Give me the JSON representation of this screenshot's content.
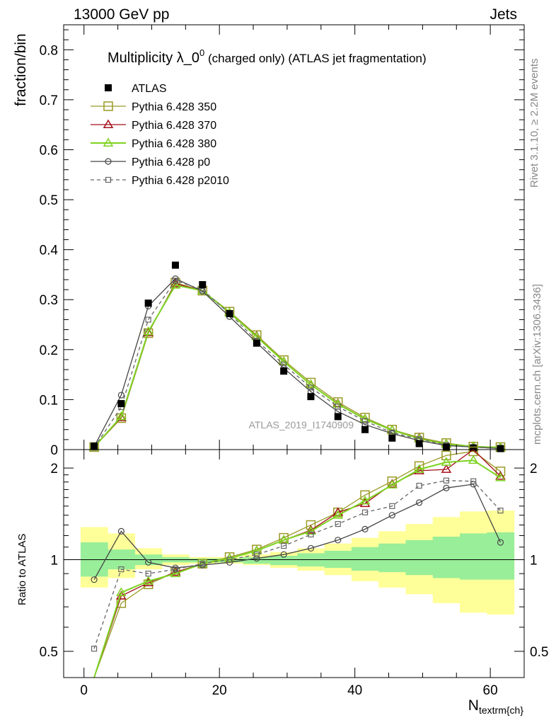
{
  "header": {
    "energy_label": "13000 GeV pp",
    "process_label": "Jets",
    "rivet_label": "Rivet 3.1.10, ≥ 2.2M events",
    "source_label": "mcplots.cern.ch [arXiv:1306.3436]",
    "analysis_label": "ATLAS_2019_I1740909"
  },
  "chart_data": [
    {
      "type": "line",
      "title_main": "Multiplicity λ_0",
      "title_sup": "0",
      "title_rest": " (charged only) (ATLAS jet fragmentation)",
      "ylabel": "fraction/bin",
      "xlim": [
        -3,
        65
      ],
      "ylim": [
        0,
        0.85
      ],
      "yticks": [
        0,
        0.1,
        0.2,
        0.3,
        0.4,
        0.5,
        0.6,
        0.7,
        0.8
      ],
      "ytick_labels": [
        "0",
        "0.1",
        "0.2",
        "0.3",
        "0.4",
        "0.5",
        "0.6",
        "0.7",
        "0.8"
      ],
      "legend_position": "top-left",
      "x": [
        1.5,
        5.5,
        9.5,
        13.5,
        17.5,
        21.5,
        25.5,
        29.5,
        33.5,
        37.5,
        41.5,
        45.5,
        49.5,
        53.5,
        57.5,
        61.5
      ],
      "data": {
        "name": "ATLAS",
        "values": [
          0.007,
          0.092,
          0.293,
          0.369,
          0.33,
          0.272,
          0.213,
          0.157,
          0.106,
          0.066,
          0.04,
          0.023,
          0.012,
          0.005,
          0.003,
          0.002
        ]
      },
      "series": [
        {
          "name": "Pythia 6.428 350",
          "color": "#9a9a26",
          "marker": "square",
          "dashed": false,
          "values": [
            0.005,
            0.063,
            0.233,
            0.334,
            0.318,
            0.276,
            0.229,
            0.179,
            0.134,
            0.095,
            0.064,
            0.04,
            0.024,
            0.013,
            0.006,
            0.005
          ]
        },
        {
          "name": "Pythia 6.428 370",
          "color": "#a50f1c",
          "marker": "triangle",
          "dashed": false,
          "values": [
            0.005,
            0.064,
            0.234,
            0.332,
            0.318,
            0.274,
            0.227,
            0.176,
            0.13,
            0.092,
            0.061,
            0.039,
            0.023,
            0.011,
            0.006,
            0.004
          ]
        },
        {
          "name": "Pythia 6.428 380",
          "color": "#7ed321",
          "marker": "triangle",
          "dashed": false,
          "values": [
            0.005,
            0.066,
            0.236,
            0.329,
            0.318,
            0.274,
            0.226,
            0.176,
            0.13,
            0.091,
            0.061,
            0.039,
            0.022,
            0.011,
            0.006,
            0.004
          ]
        },
        {
          "name": "Pythia 6.428 p0",
          "color": "#444444",
          "marker": "circle",
          "dashed": false,
          "values": [
            0.006,
            0.109,
            0.287,
            0.342,
            0.317,
            0.266,
            0.214,
            0.163,
            0.116,
            0.076,
            0.05,
            0.032,
            0.018,
            0.008,
            0.005,
            0.002
          ]
        },
        {
          "name": "Pythia 6.428 p2010",
          "color": "#666666",
          "marker": "square-small",
          "dashed": true,
          "values": [
            0.004,
            0.085,
            0.26,
            0.338,
            0.32,
            0.272,
            0.218,
            0.17,
            0.124,
            0.086,
            0.057,
            0.034,
            0.021,
            0.009,
            0.005,
            0.003
          ]
        }
      ]
    },
    {
      "type": "line",
      "ylabel": "Ratio to ATLAS",
      "xlabel_main": "N",
      "xlabel_sub": "textrm{ch}",
      "xlim": [
        -3,
        65
      ],
      "ylim": [
        0.41,
        2.3
      ],
      "yticks": [
        0.5,
        1,
        2
      ],
      "ytick_labels": [
        "0.5",
        "1",
        "2"
      ],
      "xticks": [
        0,
        20,
        40,
        60
      ],
      "xtick_labels": [
        "0",
        "20",
        "40",
        "60"
      ],
      "x": [
        1.5,
        5.5,
        9.5,
        13.5,
        17.5,
        21.5,
        25.5,
        29.5,
        33.5,
        37.5,
        41.5,
        45.5,
        49.5,
        53.5,
        57.5,
        61.5
      ],
      "bin_edges": [
        -0.5,
        3.5,
        7.5,
        11.5,
        15.5,
        19.5,
        23.5,
        27.5,
        31.5,
        35.5,
        39.5,
        43.5,
        47.5,
        51.5,
        55.5,
        59.5,
        63.5
      ],
      "band_total": {
        "low": [
          0.81,
          0.87,
          0.93,
          0.96,
          0.97,
          0.97,
          0.96,
          0.94,
          0.92,
          0.89,
          0.85,
          0.81,
          0.77,
          0.72,
          0.67,
          0.66
        ],
        "high": [
          1.28,
          1.22,
          1.09,
          1.04,
          1.02,
          1.02,
          1.04,
          1.06,
          1.09,
          1.13,
          1.18,
          1.24,
          1.31,
          1.38,
          1.44,
          1.45
        ]
      },
      "band_stat": {
        "low": [
          0.88,
          0.93,
          0.96,
          0.98,
          0.98,
          0.98,
          0.97,
          0.96,
          0.95,
          0.94,
          0.92,
          0.91,
          0.89,
          0.87,
          0.86,
          0.86
        ],
        "high": [
          1.14,
          1.08,
          1.04,
          1.02,
          1.01,
          1.01,
          1.02,
          1.03,
          1.05,
          1.07,
          1.1,
          1.13,
          1.16,
          1.19,
          1.22,
          1.23
        ]
      },
      "series": [
        {
          "name": "Pythia 6.428 350",
          "values": [
            0.35,
            0.72,
            0.83,
            0.91,
            0.97,
            1.02,
            1.08,
            1.18,
            1.3,
            1.43,
            1.63,
            1.81,
            2.03,
            2.2,
            2.27,
            1.95
          ]
        },
        {
          "name": "Pythia 6.428 370",
          "values": [
            0.35,
            0.76,
            0.84,
            0.91,
            0.97,
            1.01,
            1.07,
            1.16,
            1.25,
            1.43,
            1.53,
            1.77,
            1.96,
            1.98,
            2.31,
            1.88
          ]
        },
        {
          "name": "Pythia 6.428 380",
          "values": [
            0.35,
            0.78,
            0.85,
            0.9,
            0.97,
            1.01,
            1.07,
            1.16,
            1.24,
            1.4,
            1.56,
            1.76,
            1.98,
            2.09,
            2.12,
            1.86
          ]
        },
        {
          "name": "Pythia 6.428 p0",
          "values": [
            0.86,
            1.24,
            0.98,
            0.94,
            0.96,
            0.98,
            1.01,
            1.04,
            1.09,
            1.16,
            1.26,
            1.4,
            1.54,
            1.72,
            1.77,
            1.14
          ]
        },
        {
          "name": "Pythia 6.428 p2010",
          "values": [
            0.51,
            0.93,
            0.9,
            0.93,
            0.97,
            1.0,
            1.04,
            1.11,
            1.21,
            1.31,
            1.43,
            1.5,
            1.75,
            1.82,
            1.81,
            1.45
          ]
        }
      ]
    }
  ]
}
